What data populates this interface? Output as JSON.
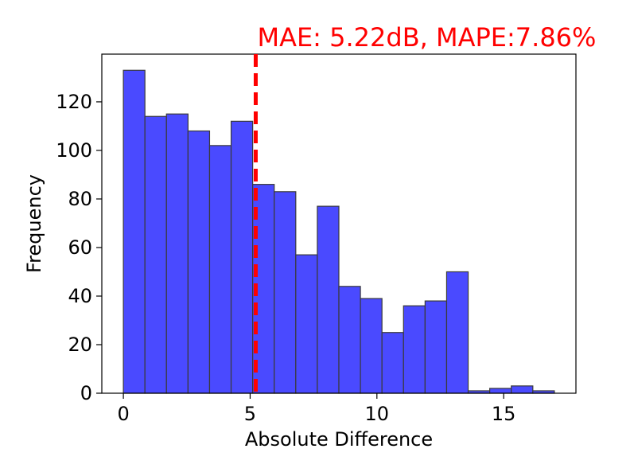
{
  "chart_data": {
    "type": "bar",
    "title": "",
    "xlabel": "Absolute Difference",
    "ylabel": "Frequency",
    "xlim": [
      -0.85,
      17.85
    ],
    "ylim": [
      0,
      139.65
    ],
    "bin_edges": [
      0.0,
      0.85,
      1.7,
      2.55,
      3.4,
      4.25,
      5.1,
      5.95,
      6.8,
      7.65,
      8.5,
      9.35,
      10.2,
      11.05,
      11.9,
      12.75,
      13.6,
      14.45,
      15.3,
      16.15,
      17.0
    ],
    "values": [
      133,
      114,
      115,
      108,
      102,
      112,
      86,
      83,
      57,
      77,
      44,
      39,
      25,
      36,
      38,
      50,
      1,
      2,
      3,
      1
    ],
    "xticks": [
      0,
      5,
      10,
      15
    ],
    "xtick_labels": [
      "0",
      "5",
      "10",
      "15"
    ],
    "yticks": [
      0,
      20,
      40,
      60,
      80,
      100,
      120
    ],
    "ytick_labels": [
      "0",
      "20",
      "40",
      "60",
      "80",
      "100",
      "120"
    ],
    "mean_line": {
      "x": 5.22,
      "color": "#ff0000",
      "style": "dashed"
    },
    "annotation": "MAE: 5.22dB, MAPE:7.86%",
    "bar_color": "#4a4aff",
    "bar_edge_color": "#3a3a3a",
    "grid": false,
    "legend": "none"
  }
}
